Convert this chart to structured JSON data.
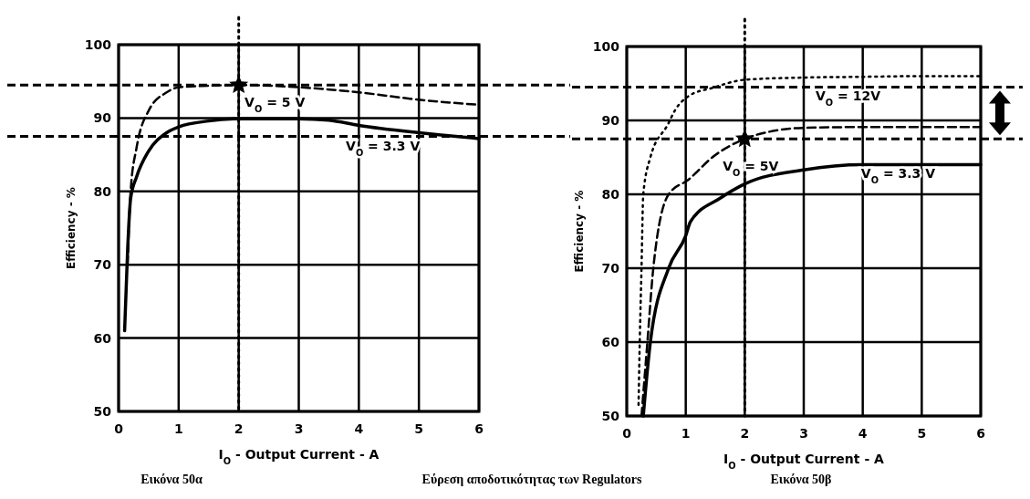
{
  "chart_data": [
    {
      "type": "line",
      "xlabel": "I$_{O}$ - Output Current - A",
      "ylabel": "Efficiency - %",
      "xlim": [
        0,
        6
      ],
      "xticks": [
        0,
        1,
        2,
        3,
        4,
        5,
        6
      ],
      "ylim": [
        50,
        100
      ],
      "yticks": [
        50,
        60,
        70,
        80,
        90,
        100
      ],
      "grid": true,
      "legend": false,
      "marker": "none",
      "series": [
        {
          "name": "V$_{O}$ = 5 V",
          "color": "#000000",
          "line_style": "dashed",
          "x": [
            0.15,
            0.2,
            0.3,
            0.5,
            0.8,
            1,
            1.5,
            2,
            3,
            4,
            5,
            6
          ],
          "values": [
            70,
            80,
            86,
            91,
            93.5,
            94.2,
            94.4,
            94.5,
            94.2,
            93.5,
            92.5,
            91.8
          ]
        },
        {
          "name": "V$_{O}$ = 3.3 V",
          "color": "#000000",
          "line_style": "solid",
          "x": [
            0.1,
            0.15,
            0.2,
            0.3,
            0.5,
            0.8,
            1,
            1.5,
            2,
            3,
            3.5,
            4,
            5,
            6
          ],
          "values": [
            61,
            72,
            79,
            82,
            85.5,
            88,
            88.8,
            89.6,
            89.9,
            89.9,
            89.7,
            89,
            88,
            87.2
          ]
        },
        {
          "type": "scatter",
          "marker": "star",
          "color": "#000000",
          "x": [
            2
          ],
          "values": [
            94.5
          ]
        }
      ],
      "ref_lines": [
        {
          "axis": "y",
          "value": 94.5,
          "line_style": "dashed"
        },
        {
          "axis": "y",
          "value": 87.5,
          "line_style": "dashed"
        },
        {
          "axis": "x",
          "value": 2,
          "line_style": "dotted"
        }
      ],
      "annotations": [
        "Εικόνα 50α",
        "Εύρεση αποδοτικότητας των Regulators"
      ]
    },
    {
      "type": "line",
      "xlabel": "I$_{O}$ - Output Current - A",
      "ylabel": "Efficiency - %",
      "xlim": [
        0,
        6
      ],
      "xticks": [
        0,
        1,
        2,
        3,
        4,
        5,
        6
      ],
      "ylim": [
        50,
        100
      ],
      "yticks": [
        50,
        60,
        70,
        80,
        90,
        100
      ],
      "grid": true,
      "legend": false,
      "marker": "none",
      "series": [
        {
          "name": "V$_{O}$ = 12V",
          "color": "#000000",
          "line_style": "dotted",
          "x": [
            0.2,
            0.22,
            0.25,
            0.28,
            0.4,
            0.7,
            0.82,
            1.05,
            1.45,
            2,
            3,
            4,
            5,
            6
          ],
          "values": [
            51.5,
            60,
            70,
            80,
            85,
            89.5,
            91.4,
            93.3,
            94.4,
            95.5,
            95.8,
            95.9,
            96,
            96
          ]
        },
        {
          "name": "V$_{O}$ = 5V",
          "color": "#000000",
          "line_style": "dashed",
          "x": [
            0.25,
            0.35,
            0.45,
            0.71,
            1.05,
            1.45,
            2,
            2.5,
            3,
            4,
            5,
            6
          ],
          "values": [
            50,
            60,
            70,
            80,
            82,
            85,
            87.5,
            88.6,
            89,
            89.1,
            89.1,
            89.1
          ]
        },
        {
          "name": "V$_{O}$ = 3.3 V",
          "color": "#000000",
          "line_style": "solid",
          "x": [
            0.28,
            0.4,
            0.71,
            1,
            1.08,
            1.59,
            2,
            3,
            4,
            5,
            6
          ],
          "values": [
            50,
            60,
            70,
            74.4,
            76.3,
            79.5,
            81.4,
            83.3,
            84,
            84,
            84
          ]
        },
        {
          "type": "scatter",
          "marker": "star",
          "color": "#000000",
          "x": [
            2
          ],
          "values": [
            87.5
          ]
        }
      ],
      "ref_lines": [
        {
          "axis": "y",
          "value": 94.5,
          "line_style": "dashed"
        },
        {
          "axis": "y",
          "value": 87.5,
          "line_style": "dashed"
        },
        {
          "axis": "x",
          "value": 2,
          "line_style": "dotted"
        }
      ],
      "annotations": [
        "Εικόνα 50β"
      ]
    }
  ]
}
